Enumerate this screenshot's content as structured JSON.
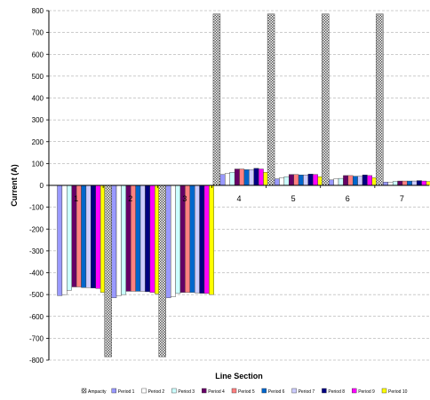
{
  "chart_data": {
    "type": "bar",
    "xlabel": "Line Section",
    "ylabel": "Current (A)",
    "ylim": [
      -800,
      800
    ],
    "yticks": [
      800,
      700,
      600,
      500,
      400,
      300,
      200,
      100,
      0,
      -100,
      -200,
      -300,
      -400,
      -500,
      -600,
      -700,
      -800
    ],
    "grid": true,
    "legend_position": "bottom",
    "categories": [
      "1",
      "2",
      "3",
      "4",
      "5",
      "6",
      "7"
    ],
    "series": [
      {
        "name": "Ampacity",
        "color": "#8c8c8c",
        "pattern": "checker",
        "values": [
          null,
          -785,
          -785,
          785,
          785,
          785,
          785
        ]
      },
      {
        "name": "Period 1",
        "color": "#9999ff",
        "values": [
          -505,
          -515,
          -515,
          50,
          30,
          25,
          15
        ]
      },
      {
        "name": "Period 2",
        "color": "#ffffff",
        "values": [
          -500,
          -505,
          -510,
          55,
          35,
          30,
          15
        ]
      },
      {
        "name": "Period 3",
        "color": "#ccffff",
        "values": [
          -480,
          -500,
          -495,
          60,
          40,
          32,
          18
        ]
      },
      {
        "name": "Period 4",
        "color": "#660066",
        "values": [
          -465,
          -485,
          -490,
          75,
          50,
          45,
          20
        ]
      },
      {
        "name": "Period 5",
        "color": "#ff8080",
        "values": [
          -465,
          -485,
          -490,
          75,
          50,
          45,
          20
        ]
      },
      {
        "name": "Period 6",
        "color": "#0066cc",
        "values": [
          -468,
          -485,
          -490,
          72,
          48,
          42,
          20
        ]
      },
      {
        "name": "Period 7",
        "color": "#ccccff",
        "values": [
          -468,
          -485,
          -492,
          72,
          48,
          42,
          20
        ]
      },
      {
        "name": "Period 8",
        "color": "#000080",
        "values": [
          -470,
          -487,
          -494,
          78,
          52,
          48,
          22
        ]
      },
      {
        "name": "Period 9",
        "color": "#ff00ff",
        "values": [
          -472,
          -490,
          -495,
          75,
          50,
          45,
          20
        ]
      },
      {
        "name": "Period 10",
        "color": "#ffff00",
        "values": [
          -490,
          -497,
          -500,
          60,
          40,
          35,
          18
        ]
      }
    ]
  }
}
